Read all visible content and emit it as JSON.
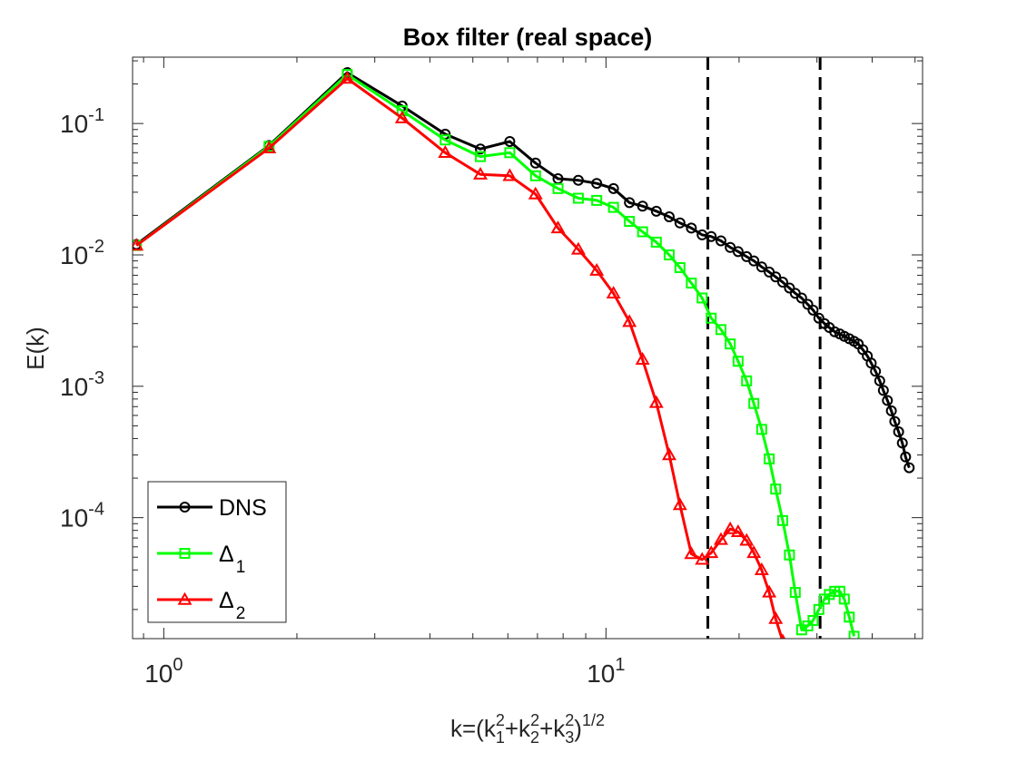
{
  "chart_data": {
    "type": "line",
    "title": "Box filter (real space)",
    "xlabel": {
      "base": "k=(k",
      "s1": "1",
      "p1": "2",
      "plus1": "+k",
      "s2": "2",
      "p2": "2",
      "plus2": "+k",
      "s3": "3",
      "p3": "2",
      "close": ")",
      "exp": "1/2"
    },
    "ylabel": "E(k)",
    "xscale": "log",
    "yscale": "log",
    "xlim": [
      0.85,
      52
    ],
    "ylim": [
      1.2e-05,
      0.32
    ],
    "grid": false,
    "legend_position": "bottom-left",
    "x_ticks": [
      {
        "value": 1,
        "mantissa": "10",
        "exponent": "0"
      },
      {
        "value": 10,
        "mantissa": "10",
        "exponent": "1"
      }
    ],
    "y_ticks": [
      {
        "value": 0.1,
        "mantissa": "10",
        "exponent": "-1"
      },
      {
        "value": 0.01,
        "mantissa": "10",
        "exponent": "-2"
      },
      {
        "value": 0.001,
        "mantissa": "10",
        "exponent": "-3"
      },
      {
        "value": 0.0001,
        "mantissa": "10",
        "exponent": "-4"
      }
    ],
    "vlines": [
      17.0,
      30.5
    ],
    "series": [
      {
        "name": "DNS",
        "sub": "",
        "color": "#000000",
        "marker": "circle",
        "points": [
          [
            0.867,
            0.012
          ],
          [
            1.73,
            0.068
          ],
          [
            2.6,
            0.244
          ],
          [
            3.46,
            0.136
          ],
          [
            4.33,
            0.083
          ],
          [
            5.2,
            0.064
          ],
          [
            6.06,
            0.073
          ],
          [
            6.93,
            0.05
          ],
          [
            7.79,
            0.038
          ],
          [
            8.66,
            0.037
          ],
          [
            9.53,
            0.035
          ],
          [
            10.4,
            0.032
          ],
          [
            11.3,
            0.025
          ],
          [
            12.1,
            0.0235
          ],
          [
            13.0,
            0.0215
          ],
          [
            13.9,
            0.0195
          ],
          [
            14.7,
            0.0175
          ],
          [
            15.6,
            0.016
          ],
          [
            16.5,
            0.0142
          ],
          [
            17.3,
            0.0138
          ],
          [
            18.2,
            0.0128
          ],
          [
            19.1,
            0.0114
          ],
          [
            19.9,
            0.0106
          ],
          [
            20.8,
            0.0097
          ],
          [
            21.6,
            0.009
          ],
          [
            22.5,
            0.0081
          ],
          [
            23.4,
            0.0074
          ],
          [
            24.2,
            0.0068
          ],
          [
            25.1,
            0.0062
          ],
          [
            26.0,
            0.0056
          ],
          [
            26.8,
            0.0051
          ],
          [
            27.7,
            0.0047
          ],
          [
            28.6,
            0.0042
          ],
          [
            29.4,
            0.0038
          ],
          [
            30.3,
            0.0033
          ],
          [
            31.2,
            0.003
          ],
          [
            32.0,
            0.0028
          ],
          [
            32.9,
            0.0026
          ],
          [
            33.8,
            0.0025
          ],
          [
            34.6,
            0.0024
          ],
          [
            35.5,
            0.0023
          ],
          [
            36.4,
            0.0022
          ],
          [
            37.2,
            0.0021
          ],
          [
            38.1,
            0.0019
          ],
          [
            39.0,
            0.0017
          ],
          [
            39.8,
            0.0015
          ],
          [
            40.7,
            0.0013
          ],
          [
            41.6,
            0.0011
          ],
          [
            42.4,
            0.00093
          ],
          [
            43.3,
            0.00078
          ],
          [
            44.2,
            0.00065
          ],
          [
            45.0,
            0.00054
          ],
          [
            45.9,
            0.00045
          ],
          [
            46.8,
            0.00037
          ],
          [
            47.6,
            0.00029
          ],
          [
            48.5,
            0.00024
          ]
        ]
      },
      {
        "name": "Δ",
        "sub": "1",
        "color": "#00ff00",
        "marker": "square",
        "points": [
          [
            0.867,
            0.0118
          ],
          [
            1.73,
            0.067
          ],
          [
            2.6,
            0.236
          ],
          [
            3.46,
            0.125
          ],
          [
            4.33,
            0.075
          ],
          [
            5.2,
            0.056
          ],
          [
            6.06,
            0.06
          ],
          [
            6.93,
            0.04
          ],
          [
            7.79,
            0.032
          ],
          [
            8.66,
            0.027
          ],
          [
            9.53,
            0.026
          ],
          [
            10.4,
            0.023
          ],
          [
            11.3,
            0.018
          ],
          [
            12.1,
            0.015
          ],
          [
            13.0,
            0.0125
          ],
          [
            13.9,
            0.01
          ],
          [
            14.7,
            0.008
          ],
          [
            15.6,
            0.0061
          ],
          [
            16.5,
            0.0047
          ],
          [
            17.3,
            0.0033
          ],
          [
            18.2,
            0.0027
          ],
          [
            19.1,
            0.0021
          ],
          [
            19.9,
            0.00155
          ],
          [
            20.8,
            0.0011
          ],
          [
            21.6,
            0.00074
          ],
          [
            22.5,
            0.00047
          ],
          [
            23.4,
            0.00028
          ],
          [
            24.2,
            0.000165
          ],
          [
            25.1,
            9.5e-05
          ],
          [
            26.0,
            5.2e-05
          ],
          [
            26.8,
            2.7e-05
          ],
          [
            27.7,
            1.4e-05
          ],
          [
            28.6,
            1.5e-05
          ],
          [
            29.4,
            1.65e-05
          ],
          [
            30.3,
            2e-05
          ],
          [
            31.2,
            2.4e-05
          ],
          [
            32.0,
            2.6e-05
          ],
          [
            32.9,
            2.75e-05
          ],
          [
            33.8,
            2.75e-05
          ],
          [
            34.6,
            2.4e-05
          ],
          [
            35.5,
            1.75e-05
          ],
          [
            36.4,
            1.25e-05
          ]
        ]
      },
      {
        "name": "Δ",
        "sub": "2",
        "color": "#ff0000",
        "marker": "triangle",
        "points": [
          [
            0.867,
            0.0118
          ],
          [
            1.73,
            0.065
          ],
          [
            2.6,
            0.22
          ],
          [
            3.46,
            0.11
          ],
          [
            4.33,
            0.06
          ],
          [
            5.2,
            0.041
          ],
          [
            6.06,
            0.04
          ],
          [
            6.93,
            0.029
          ],
          [
            7.79,
            0.016
          ],
          [
            8.66,
            0.011
          ],
          [
            9.53,
            0.0076
          ],
          [
            10.4,
            0.0051
          ],
          [
            11.3,
            0.0031
          ],
          [
            12.1,
            0.0016
          ],
          [
            13.0,
            0.00075
          ],
          [
            13.9,
            0.0003
          ],
          [
            14.7,
            0.000125
          ],
          [
            15.6,
            5.3e-05
          ],
          [
            16.5,
            4.8e-05
          ],
          [
            17.3,
            5.4e-05
          ],
          [
            18.2,
            6.8e-05
          ],
          [
            19.1,
            8.2e-05
          ],
          [
            19.9,
            7.8e-05
          ],
          [
            20.8,
            6.7e-05
          ],
          [
            21.6,
            5.4e-05
          ],
          [
            22.5,
            4e-05
          ],
          [
            23.4,
            2.7e-05
          ],
          [
            24.2,
            1.7e-05
          ],
          [
            25.1,
            1.15e-05
          ]
        ]
      }
    ]
  }
}
